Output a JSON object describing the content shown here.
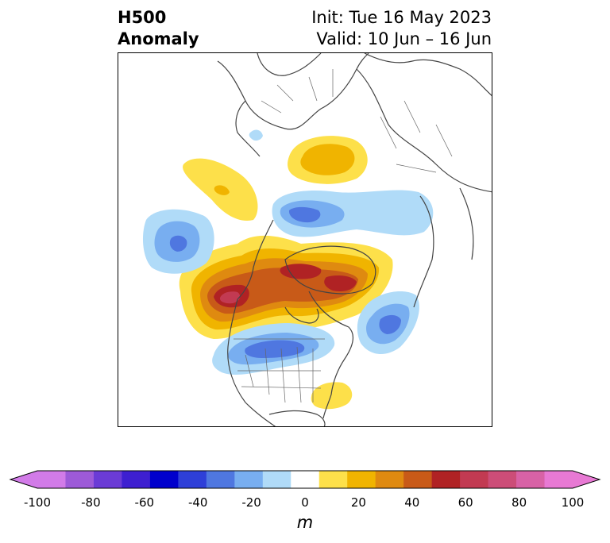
{
  "title": {
    "left_line1": "H500",
    "left_line2": "Anomaly",
    "right_line1": "Init: Tue 16 May 2023",
    "right_line2": "Valid: 10 Jun – 16 Jun"
  },
  "colorbar": {
    "unit": "m",
    "ticks": [
      "-100",
      "-80",
      "-60",
      "-40",
      "-20",
      "0",
      "20",
      "40",
      "60",
      "80",
      "100"
    ],
    "levels": [
      -100,
      -90,
      -80,
      -70,
      -60,
      -50,
      -40,
      -30,
      -20,
      -10,
      10,
      20,
      30,
      40,
      50,
      60,
      70,
      80,
      90,
      100
    ],
    "colors": [
      "#d27be8",
      "#9d5ad8",
      "#6b3bd6",
      "#3e1fd0",
      "#0000cc",
      "#2e3fd8",
      "#4f77e0",
      "#78aef0",
      "#b0dbf8",
      "#ffffff",
      "#fde04a",
      "#f0b400",
      "#df8a10",
      "#c85a18",
      "#b02224",
      "#c23a52",
      "#cc4d78",
      "#d862a6",
      "#e879d4"
    ],
    "extend_low_color": "#d27be8",
    "extend_high_color": "#e879d4"
  },
  "map": {
    "projection": "north polar stereographic",
    "features": [
      "coastlines",
      "country borders",
      "state/province borders"
    ]
  }
}
